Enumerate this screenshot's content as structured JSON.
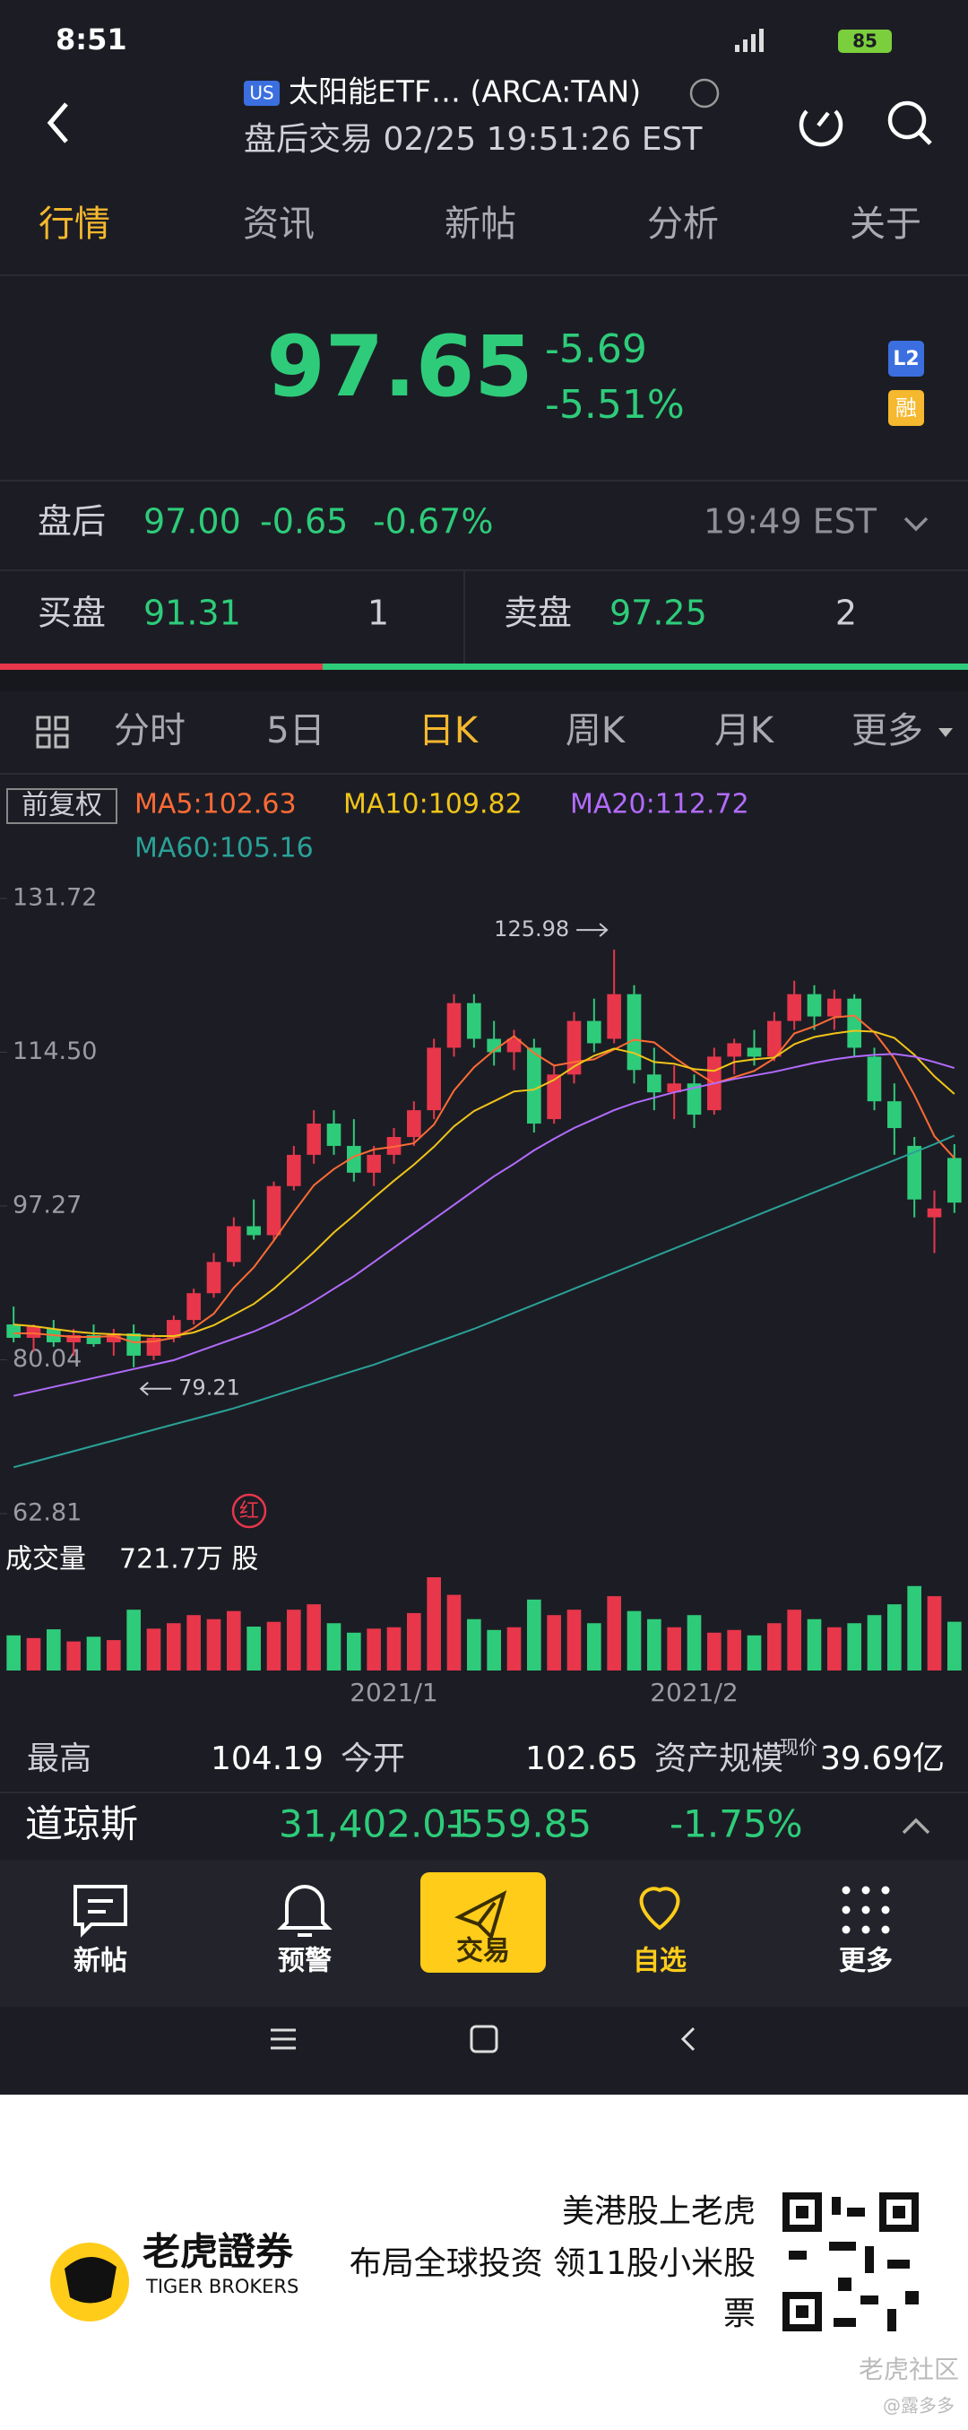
{
  "status_bar": {
    "time": "8:51",
    "battery": "85"
  },
  "header": {
    "market_badge": "US",
    "title": "太阳能ETF… (ARCA:TAN)",
    "subtitle": "盘后交易 02/25 19:51:26 EST"
  },
  "tabs": [
    "行情",
    "资讯",
    "新帖",
    "分析",
    "关于"
  ],
  "quote": {
    "price": "97.65",
    "change": "-5.69",
    "change_pct": "-5.51%",
    "badge_level": "L2",
    "badge_margin": "融"
  },
  "after_hours": {
    "label": "盘后",
    "price": "97.00",
    "change": "-0.65",
    "change_pct": "-0.67%",
    "time": "19:49 EST"
  },
  "order_book": {
    "bid_label": "买盘",
    "bid_price": "91.31",
    "bid_size": "1",
    "ask_label": "卖盘",
    "ask_price": "97.25",
    "ask_size": "2"
  },
  "period_tabs": [
    "分时",
    "5日",
    "日K",
    "周K",
    "月K",
    "更多"
  ],
  "adjust_label": "前复权",
  "red_badge": "红",
  "volume_info": {
    "label": "成交量",
    "value": "721.7万 股"
  },
  "chart_data": {
    "type": "candlestick",
    "up_color": "#e8364b",
    "down_color": "#2ecc7a",
    "ylim": [
      62.81,
      131.72
    ],
    "yticks": [
      131.72,
      {
        "value": 114.5,
        "label": "114.50"
      },
      97.27,
      80.04,
      62.81
    ],
    "dates": [
      null,
      null,
      null,
      null,
      null,
      null,
      null,
      null,
      null,
      null,
      null,
      null,
      null,
      null,
      null,
      null,
      null,
      null,
      null,
      "2021/1",
      null,
      null,
      null,
      null,
      null,
      null,
      null,
      null,
      null,
      null,
      null,
      null,
      null,
      null,
      "2021/2",
      null,
      null,
      null,
      null,
      null,
      null,
      null,
      null,
      null,
      null,
      null,
      null,
      null
    ],
    "open": [
      84,
      82.5,
      83.5,
      82,
      82.8,
      82,
      83,
      80.5,
      82.5,
      84.5,
      87.5,
      91,
      95,
      94,
      99.5,
      103,
      106.5,
      104,
      101,
      103,
      105,
      108,
      115,
      120,
      116,
      114.5,
      115,
      107,
      112,
      118,
      116,
      121,
      112,
      110,
      111,
      108,
      114,
      115,
      114,
      118,
      121,
      118.5,
      120.5,
      114,
      109,
      104,
      96,
      102.65
    ],
    "high": [
      86,
      84,
      84.5,
      83.5,
      84,
      83.5,
      84,
      83,
      85,
      88,
      92,
      96,
      98,
      100,
      104,
      108,
      108,
      107,
      104,
      106,
      109,
      116,
      121,
      121,
      118,
      117,
      116,
      113,
      119,
      120.5,
      125.98,
      122,
      115,
      113,
      112,
      115,
      116,
      117,
      119,
      122.5,
      122,
      121.5,
      121,
      115,
      111,
      105,
      99,
      104.19
    ],
    "low": [
      82,
      81,
      81.5,
      80.5,
      81.5,
      80.5,
      79.21,
      80,
      82,
      84,
      87,
      90.5,
      93.5,
      93.5,
      99,
      102,
      103,
      100,
      99.5,
      102,
      104,
      107,
      114,
      115,
      113,
      112.5,
      105.5,
      106.5,
      111,
      114.5,
      115.5,
      111,
      108,
      107,
      106,
      107.5,
      112,
      113,
      113.5,
      117,
      117,
      117,
      114,
      108,
      103,
      96,
      92,
      96.5
    ],
    "close": [
      82.5,
      83.8,
      82,
      82.8,
      81.8,
      83,
      80.5,
      82.5,
      84.5,
      87.5,
      91,
      95,
      94,
      99.5,
      103,
      106.5,
      104,
      101,
      103,
      105,
      108,
      115,
      120,
      116,
      114.5,
      116,
      106.5,
      112,
      118,
      115.5,
      121,
      112.5,
      110,
      111,
      107.5,
      114,
      115.5,
      114,
      118,
      121,
      118.5,
      120.5,
      115,
      109,
      106,
      98,
      97,
      97.65
    ],
    "volume": [
      520,
      480,
      610,
      430,
      500,
      450,
      900,
      620,
      700,
      820,
      760,
      880,
      650,
      720,
      900,
      980,
      700,
      560,
      620,
      640,
      850,
      1380,
      1120,
      760,
      600,
      640,
      1050,
      820,
      900,
      700,
      1100,
      880,
      760,
      640,
      820,
      560,
      600,
      520,
      700,
      900,
      760,
      640,
      700,
      820,
      980,
      1250,
      1100,
      721.7
    ],
    "series": [
      {
        "name": "MA5:102.63",
        "color": "#ff6b35",
        "values": [
          83,
          83,
          82.8,
          82.6,
          82.6,
          82.7,
          82,
          82.1,
          82.5,
          83.6,
          85.2,
          88.1,
          90.4,
          93.4,
          96.6,
          99.6,
          101.4,
          102.8,
          103.6,
          103.9,
          104.3,
          106.4,
          110.2,
          112.8,
          114.7,
          116.3,
          114.4,
          113,
          113.4,
          113.7,
          114.8,
          115.9,
          115.6,
          113.9,
          112.4,
          111,
          111.7,
          112.4,
          113.8,
          116.6,
          117.4,
          118.4,
          118.6,
          116.7,
          113.8,
          109.7,
          105.1,
          102.63
        ]
      },
      {
        "name": "MA10:109.82",
        "color": "#f0c419",
        "values": [
          84,
          83.8,
          83.5,
          83.2,
          83,
          82.9,
          82.8,
          82.7,
          82.7,
          83.1,
          83.9,
          85.1,
          86.3,
          88,
          90,
          92.1,
          94.3,
          96.2,
          98.2,
          100.1,
          101.9,
          103.9,
          106.2,
          107.9,
          109,
          110.1,
          110.3,
          111.4,
          112.9,
          114.1,
          114.9,
          114.4,
          113.4,
          113.2,
          112.6,
          112.4,
          113.4,
          113.7,
          113.9,
          115.4,
          116.2,
          116.6,
          116.9,
          116.8,
          116.1,
          114.2,
          111.8,
          109.82
        ]
      },
      {
        "name": "MA20:112.72",
        "color": "#b36bff",
        "values": [
          76,
          76.5,
          77,
          77.5,
          78,
          78.5,
          79,
          79.5,
          80,
          80.8,
          81.6,
          82.4,
          83.2,
          84.2,
          85.3,
          86.6,
          88,
          89.4,
          91,
          92.6,
          94.2,
          95.8,
          97.4,
          99,
          100.6,
          102,
          103.5,
          104.8,
          106,
          107,
          108,
          108.8,
          109.4,
          110,
          110.5,
          111,
          111.5,
          111.9,
          112.3,
          112.8,
          113.3,
          113.7,
          114,
          114.2,
          114.3,
          114,
          113.4,
          112.72
        ]
      },
      {
        "name": "MA60:105.16",
        "color": "#2aa198",
        "values": [
          68,
          68.6,
          69.2,
          69.8,
          70.4,
          71,
          71.6,
          72.2,
          72.8,
          73.4,
          74,
          74.6,
          75.3,
          76,
          76.7,
          77.4,
          78.1,
          78.8,
          79.5,
          80.3,
          81.1,
          81.9,
          82.7,
          83.5,
          84.4,
          85.3,
          86.2,
          87.1,
          88,
          88.9,
          89.8,
          90.7,
          91.6,
          92.5,
          93.4,
          94.3,
          95.2,
          96.1,
          97,
          97.9,
          98.8,
          99.7,
          100.6,
          101.5,
          102.4,
          103.3,
          104.2,
          105.16
        ]
      }
    ]
  },
  "stats": {
    "high_label": "最高",
    "high": "104.19",
    "open_label": "今开",
    "open": "102.65",
    "aum_label": "资产规模",
    "aum_note": "现价",
    "aum": "39.69亿"
  },
  "index_ticker": {
    "name": "道琼斯",
    "price": "31,402.01",
    "change": "-559.85",
    "change_pct": "-1.75%"
  },
  "bottom_nav": [
    "新帖",
    "预警",
    "交易",
    "自选",
    "更多"
  ],
  "footer": {
    "brand": "老虎證券",
    "brand_en": "TIGER BROKERS",
    "slogan": [
      "美港股上老虎",
      "布局全球投资 领11股小米股",
      "票"
    ],
    "watermark": "老虎社区",
    "author": "@露多多"
  }
}
